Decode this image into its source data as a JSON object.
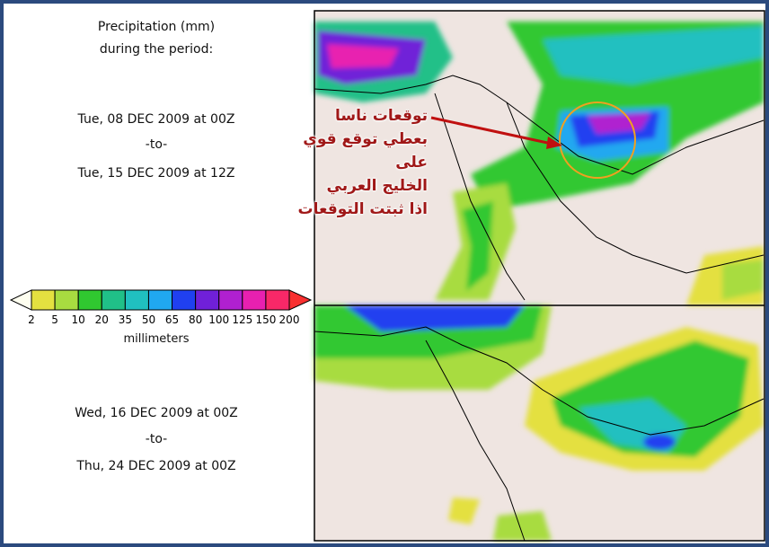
{
  "header": {
    "title_line1": "Precipitation (mm)",
    "title_line2": "during the period:"
  },
  "periods": [
    {
      "start": "Tue, 08 DEC 2009 at 00Z",
      "separator": "-to-",
      "end": "Tue, 15 DEC 2009 at 12Z"
    },
    {
      "start": "Wed, 16 DEC 2009 at 00Z",
      "separator": "-to-",
      "end": "Thu, 24 DEC 2009 at 00Z"
    }
  ],
  "legend": {
    "ticks": [
      2,
      5,
      10,
      20,
      35,
      50,
      65,
      80,
      100,
      125,
      150,
      200
    ],
    "under_color": "#fffff0",
    "colors": [
      "#e4e040",
      "#a8dc40",
      "#30c830",
      "#20c088",
      "#20c0c0",
      "#20a8f0",
      "#2040f0",
      "#7020d8",
      "#b020d0",
      "#e820b0",
      "#f82868"
    ],
    "over_color": "#f83030",
    "unit": "millimeters"
  },
  "annotation": {
    "lines": [
      "توقعات ناسا",
      "بعطي توقع قوي على",
      "الخليج العربي",
      "اذا ثبتت التوقعات"
    ]
  }
}
